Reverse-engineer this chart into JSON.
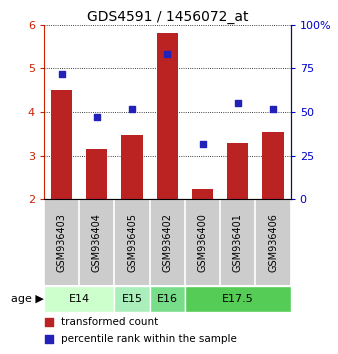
{
  "title": "GDS4591 / 1456072_at",
  "samples": [
    "GSM936403",
    "GSM936404",
    "GSM936405",
    "GSM936402",
    "GSM936400",
    "GSM936401",
    "GSM936406"
  ],
  "bar_values": [
    4.5,
    3.15,
    3.48,
    5.82,
    2.25,
    3.3,
    3.55
  ],
  "percentile_values": [
    72,
    47,
    52,
    83,
    32,
    55,
    52
  ],
  "bar_color": "#bb2222",
  "dot_color": "#2222bb",
  "ylim_left": [
    2,
    6
  ],
  "ylim_right": [
    0,
    100
  ],
  "yticks_left": [
    2,
    3,
    4,
    5,
    6
  ],
  "yticks_right": [
    0,
    25,
    50,
    75,
    100
  ],
  "yticklabels_right": [
    "0",
    "25",
    "50",
    "75",
    "100%"
  ],
  "age_groups": [
    {
      "label": "E14",
      "indices": [
        0,
        1
      ],
      "color": "#ccffcc"
    },
    {
      "label": "E15",
      "indices": [
        2
      ],
      "color": "#aaeebb"
    },
    {
      "label": "E16",
      "indices": [
        3
      ],
      "color": "#77dd88"
    },
    {
      "label": "E17.5",
      "indices": [
        4,
        5,
        6
      ],
      "color": "#55cc55"
    }
  ],
  "bar_bottom": 2,
  "bar_color_hex": "#bb2222",
  "dot_color_hex": "#2222cc",
  "left_axis_color": "#cc2200",
  "right_axis_color": "#0000cc",
  "sample_bg_color": "#cccccc",
  "legend_text_1": "transformed count",
  "legend_text_2": "percentile rank within the sample"
}
